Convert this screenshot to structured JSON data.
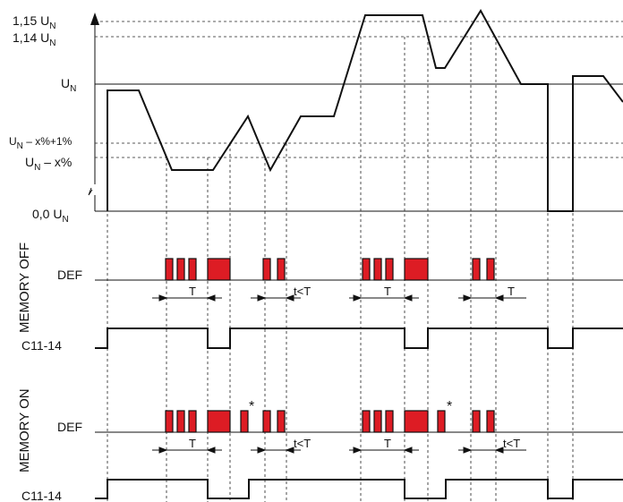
{
  "y_axis": {
    "upper_1": "1,15 U",
    "upper_2": "1,14 U",
    "nominal": "U",
    "hyst": "U",
    "hyst_suffix": " – x%+1%",
    "threshold": "U",
    "threshold_suffix": " – x%",
    "zero": "0,0 U",
    "subscript": "N"
  },
  "memory_off": {
    "section_label": "MEMORY OFF",
    "def_label": "DEF",
    "relay_label": "C11-14",
    "t_labels": [
      "T",
      "t<T",
      "T",
      "T"
    ]
  },
  "memory_on": {
    "section_label": "MEMORY ON",
    "def_label": "DEF",
    "relay_label": "C11-14",
    "t_labels": [
      "T",
      "t<T",
      "T",
      "t<T"
    ],
    "marker": "*"
  },
  "colors": {
    "pulse": "#dd1c24",
    "line": "#111111"
  }
}
